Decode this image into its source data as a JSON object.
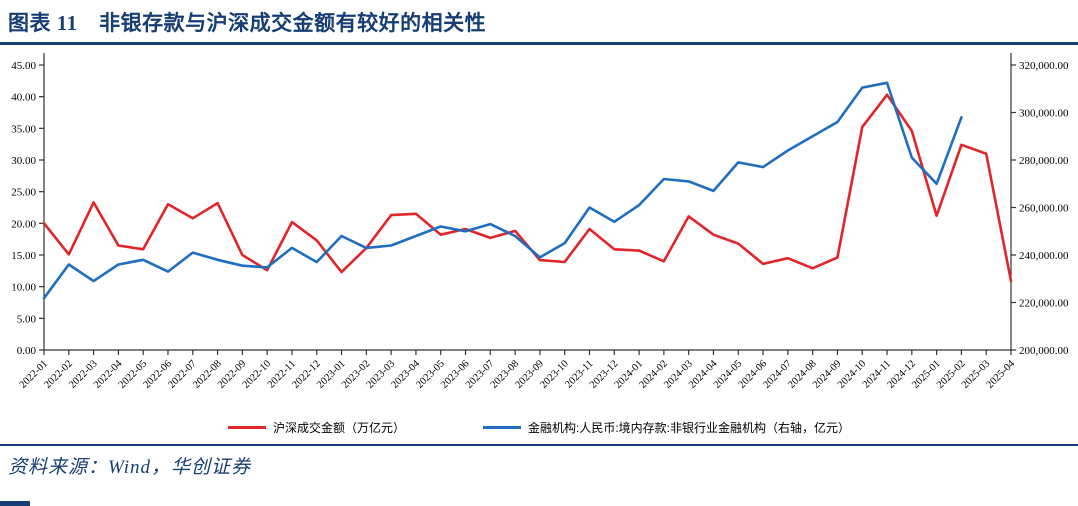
{
  "page": {
    "title": "图表 11　非银存款与沪深成交金额有较好的相关性",
    "source_note": "资料来源：Wind，华创证券",
    "accent_color": "#173e73"
  },
  "chart_data": {
    "type": "line",
    "title": "",
    "grid": false,
    "legend_position": "bottom",
    "categories": [
      "2022-01",
      "2022-02",
      "2022-03",
      "2022-04",
      "2022-05",
      "2022-06",
      "2022-07",
      "2022-08",
      "2022-09",
      "2022-10",
      "2022-11",
      "2022-12",
      "2023-01",
      "2023-02",
      "2023-03",
      "2023-04",
      "2023-05",
      "2023-06",
      "2023-07",
      "2023-08",
      "2023-09",
      "2023-10",
      "2023-11",
      "2023-12",
      "2024-01",
      "2024-02",
      "2024-03",
      "2024-04",
      "2024-05",
      "2024-06",
      "2024-07",
      "2024-08",
      "2024-09",
      "2024-10",
      "2024-11",
      "2024-12",
      "2025-01",
      "2025-02",
      "2025-03",
      "2025-04"
    ],
    "left_axis": {
      "min": 0,
      "max": 45,
      "step": 5,
      "format": "fixed2"
    },
    "right_axis": {
      "min": 200000,
      "max": 320000,
      "step": 20000,
      "format": "thousands2"
    },
    "series": [
      {
        "name": "沪深成交金额（万亿元）",
        "axis": "left",
        "color": "#e0252b",
        "values": [
          20.0,
          15.1,
          23.3,
          16.5,
          15.9,
          23.0,
          20.8,
          23.2,
          15.0,
          12.6,
          20.2,
          17.3,
          12.3,
          16.1,
          21.3,
          21.5,
          18.2,
          19.1,
          17.7,
          18.8,
          14.2,
          13.9,
          19.1,
          15.9,
          15.7,
          14.0,
          21.1,
          18.2,
          16.8,
          13.6,
          14.5,
          12.9,
          14.6,
          35.2,
          40.3,
          34.6,
          21.2,
          32.4,
          31.0,
          10.9
        ]
      },
      {
        "name": "金融机构:人民币:境内存款:非银行业金融机构（右轴，亿元）",
        "axis": "right",
        "color": "#1f6ec2",
        "values": [
          221800,
          236000,
          229000,
          236000,
          238000,
          233000,
          241000,
          238000,
          235500,
          234800,
          243000,
          237000,
          248000,
          243000,
          244000,
          248000,
          252000,
          250000,
          253000,
          248000,
          239000,
          245000,
          260000,
          254000,
          261000,
          272000,
          271000,
          267000,
          279000,
          277000,
          284000,
          290000,
          296000,
          310500,
          312500,
          281000,
          270000,
          298000,
          null,
          null
        ]
      }
    ]
  }
}
